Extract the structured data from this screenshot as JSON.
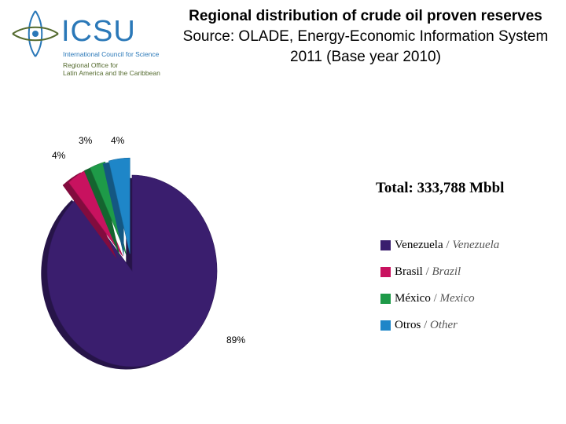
{
  "logo": {
    "name": "ICSU",
    "subtitle": "International Council for Science",
    "office_line1": "Regional Office for",
    "office_line2": "Latin America and the Caribbean"
  },
  "header": {
    "title": "Regional distribution of crude oil proven reserves",
    "source": "Source: OLADE, Energy-Economic Information System 2011 (Base year 2010)"
  },
  "total": "Total: 333,788 Mbbl",
  "chart_data": {
    "type": "pie",
    "title": "Regional distribution of crude oil proven reserves",
    "slices": [
      {
        "label": "Venezuela",
        "label_en": "Venezuela",
        "value": 89,
        "value_label": "89%",
        "color": "#3a1e6e"
      },
      {
        "label": "Brasil",
        "label_en": "Brazil",
        "value": 4,
        "value_label": "4%",
        "color": "#c8125f"
      },
      {
        "label": "México",
        "label_en": "Mexico",
        "value": 3,
        "value_label": "3%",
        "color": "#1e9a48"
      },
      {
        "label": "Otros",
        "label_en": "Other",
        "value": 4,
        "value_label": "4%",
        "color": "#1e86c8"
      }
    ],
    "legend_position": "right"
  }
}
